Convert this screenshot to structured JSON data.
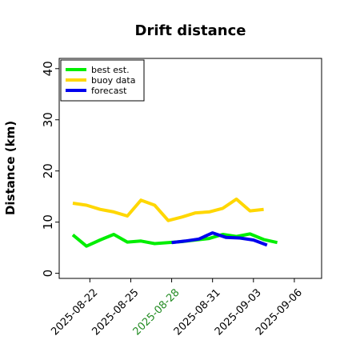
{
  "chart_data": {
    "type": "line",
    "title": "Drift distance",
    "xlabel": "",
    "ylabel": "Distance (km)",
    "x_ticks": [
      "2025-08-22",
      "2025-08-25",
      "2025-08-28",
      "2025-08-31",
      "2025-09-03",
      "2025-09-06"
    ],
    "highlight_tick": "2025-08-28",
    "highlight_color": "#228B22",
    "xlim": [
      "2025-08-19T18:00",
      "2025-09-08"
    ],
    "ylim": [
      -1,
      42
    ],
    "y_ticks": [
      0,
      10,
      20,
      30,
      40
    ],
    "grid": false,
    "legend_position": "top-left",
    "series": [
      {
        "name": "best est.",
        "color": "#00ee00",
        "x": [
          "2025-08-20T18:00",
          "2025-08-21T18:00",
          "2025-08-22T18:00",
          "2025-08-23T18:00",
          "2025-08-24T18:00",
          "2025-08-25T18:00",
          "2025-08-26T18:00",
          "2025-08-27T18:00",
          "2025-08-28T18:00",
          "2025-08-29T18:00",
          "2025-08-30T18:00",
          "2025-08-31T18:00",
          "2025-09-01T18:00",
          "2025-09-02T18:00",
          "2025-09-03T18:00",
          "2025-09-04T18:00"
        ],
        "values": [
          7.5,
          5.3,
          6.5,
          7.6,
          6.1,
          6.3,
          5.8,
          6.0,
          6.2,
          6.5,
          6.8,
          7.6,
          7.2,
          7.7,
          6.6,
          6.0
        ]
      },
      {
        "name": "buoy data",
        "color": "#ffd700",
        "x": [
          "2025-08-20T18:00",
          "2025-08-21T18:00",
          "2025-08-22T18:00",
          "2025-08-23T18:00",
          "2025-08-24T18:00",
          "2025-08-25T18:00",
          "2025-08-26T18:00",
          "2025-08-27T18:00",
          "2025-08-28T18:00",
          "2025-08-29T18:00",
          "2025-08-30T18:00",
          "2025-08-31T18:00",
          "2025-09-01T18:00",
          "2025-09-02T18:00",
          "2025-09-03T18:00",
          "2025-09-04T18:00"
        ],
        "values": [
          13.7,
          13.3,
          12.5,
          12.0,
          11.2,
          14.3,
          13.3,
          10.3,
          11.0,
          11.8,
          12.0,
          12.7,
          14.5,
          12.2,
          12.5,
          null
        ]
      },
      {
        "name": "forecast",
        "color": "#0000ee",
        "x": [
          "2025-08-28T00:00",
          "2025-08-29T00:00",
          "2025-08-30T00:00",
          "2025-08-31T00:00",
          "2025-09-01T00:00",
          "2025-09-02T00:00",
          "2025-09-03T00:00",
          "2025-09-04T00:00"
        ],
        "values": [
          6.0,
          6.3,
          6.7,
          7.9,
          7.0,
          6.9,
          6.5,
          5.5
        ]
      }
    ]
  }
}
